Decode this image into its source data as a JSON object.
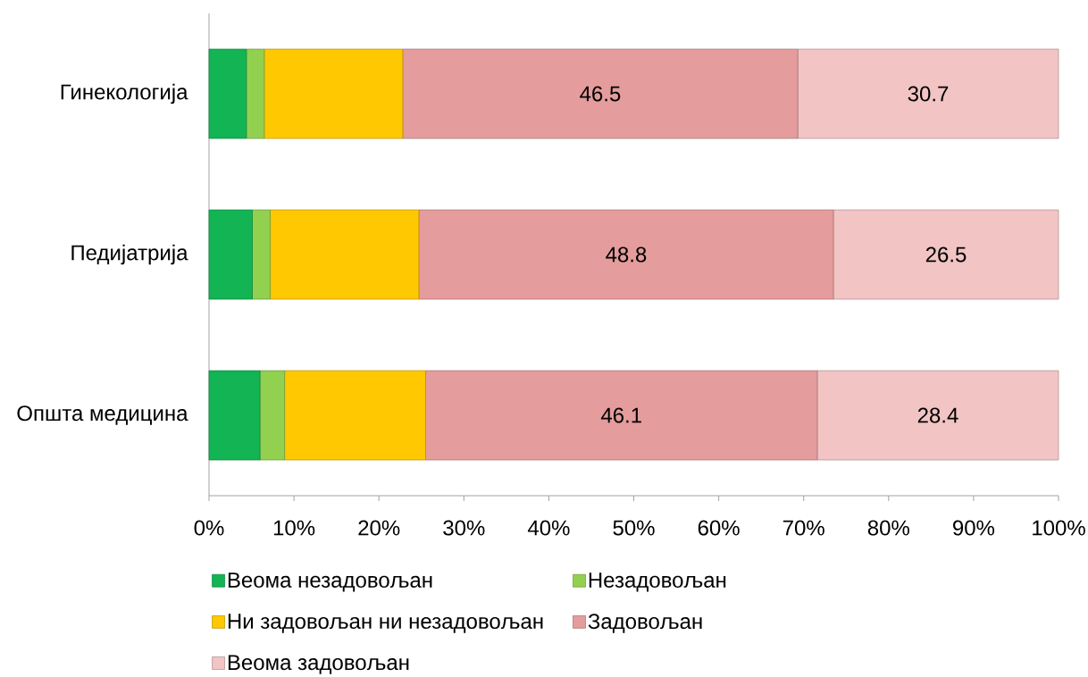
{
  "chart_data": {
    "type": "bar",
    "orientation": "horizontal",
    "stacked": true,
    "categories": [
      "Гинекологија",
      "Педијатрија",
      "Општа медицина"
    ],
    "series": [
      {
        "name": "Веома незадовољан",
        "color": "#12b454",
        "values": [
          4.4,
          5.1,
          6.0
        ]
      },
      {
        "name": "Незадовољан",
        "color": "#92d050",
        "values": [
          2.1,
          2.1,
          2.9
        ]
      },
      {
        "name": "Ни задовољан ни незадовољан",
        "color": "#ffc800",
        "values": [
          16.3,
          17.5,
          16.6
        ]
      },
      {
        "name": "Задовољан",
        "color": "#e59c9c",
        "values": [
          46.5,
          48.8,
          46.1
        ],
        "value_labels": [
          "46.5",
          "48.8",
          "46.1"
        ]
      },
      {
        "name": "Веома задовољан",
        "color": "#f2c4c4",
        "values": [
          30.7,
          26.5,
          28.4
        ],
        "value_labels": [
          "30.7",
          "26.5",
          "28.4"
        ]
      }
    ],
    "xlim": [
      0,
      100
    ],
    "xticks": [
      {
        "value": 0,
        "label": "0%"
      },
      {
        "value": 10,
        "label": "10%"
      },
      {
        "value": 20,
        "label": "20%"
      },
      {
        "value": 30,
        "label": "30%"
      },
      {
        "value": 40,
        "label": "40%"
      },
      {
        "value": 50,
        "label": "50%"
      },
      {
        "value": 60,
        "label": "60%"
      },
      {
        "value": 70,
        "label": "70%"
      },
      {
        "value": 80,
        "label": "80%"
      },
      {
        "value": 90,
        "label": "90%"
      },
      {
        "value": 100,
        "label": "100%"
      }
    ],
    "legend": "bottom left"
  }
}
